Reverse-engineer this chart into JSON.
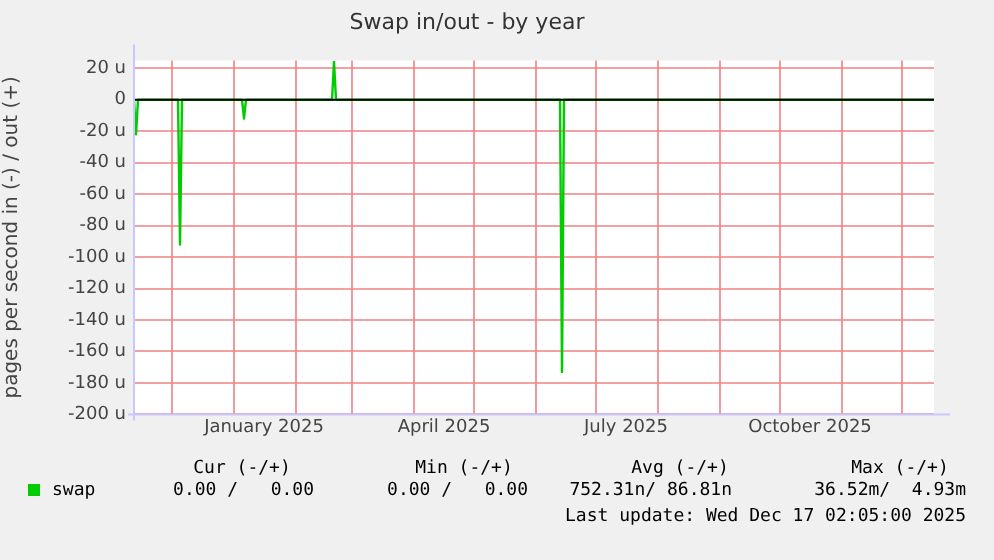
{
  "chart_data": {
    "type": "line",
    "title": "Swap in/out - by year",
    "ylabel": "pages per second in (-) / out (+)",
    "x": [
      "2024-11-12",
      "2024-11-13",
      "2024-11-14",
      "2024-12-04",
      "2024-12-05",
      "2024-12-06",
      "2025-01-05",
      "2025-01-06",
      "2025-01-07",
      "2025-02-19",
      "2025-02-20",
      "2025-02-21",
      "2025-06-13",
      "2025-06-14",
      "2025-06-15",
      "2025-12-17"
    ],
    "series": [
      {
        "name": "swap",
        "color": "#00cc00",
        "values": [
          0,
          -22,
          0,
          0,
          -92,
          0,
          0,
          -12,
          0,
          0,
          24,
          0,
          0,
          -173,
          0,
          0
        ]
      }
    ],
    "xlim": [
      "2024-11-12",
      "2025-12-17"
    ],
    "xticks": [
      {
        "value": "2024-12-01",
        "label": null
      },
      {
        "value": "2025-01-01",
        "label": null
      },
      {
        "value": "2025-01-16",
        "label": "January 2025"
      },
      {
        "value": "2025-02-01",
        "label": null
      },
      {
        "value": "2025-03-01",
        "label": null
      },
      {
        "value": "2025-04-01",
        "label": null
      },
      {
        "value": "2025-04-16",
        "label": "April 2025"
      },
      {
        "value": "2025-05-01",
        "label": null
      },
      {
        "value": "2025-06-01",
        "label": null
      },
      {
        "value": "2025-07-01",
        "label": null
      },
      {
        "value": "2025-07-16",
        "label": "July 2025"
      },
      {
        "value": "2025-08-01",
        "label": null
      },
      {
        "value": "2025-09-01",
        "label": null
      },
      {
        "value": "2025-10-01",
        "label": null
      },
      {
        "value": "2025-10-16",
        "label": "October 2025"
      },
      {
        "value": "2025-11-01",
        "label": null
      },
      {
        "value": "2025-12-01",
        "label": null
      }
    ],
    "ylim": [
      -200,
      25
    ],
    "yticks": [
      {
        "value": 20,
        "label": "20 u"
      },
      0,
      {
        "value": -20,
        "label": "-20 u"
      },
      {
        "value": -40,
        "label": "-40 u"
      },
      {
        "value": -60,
        "label": "-60 u"
      },
      {
        "value": -80,
        "label": "-80 u"
      },
      {
        "value": -100,
        "label": "-100 u"
      },
      {
        "value": -120,
        "label": "-120 u"
      },
      {
        "value": -140,
        "label": "-140 u"
      },
      {
        "value": -160,
        "label": "-160 u"
      },
      {
        "value": -180,
        "label": "-180 u"
      },
      {
        "value": -200,
        "label": "-200 u"
      }
    ],
    "ref_lines": [
      {
        "axis": "y",
        "value": 0,
        "color": "#000000"
      }
    ],
    "grid": true,
    "legend": "bottom left",
    "marker": "none",
    "line_style": "solid",
    "annotations": [
      "Cur (-/+)",
      "Min (-/+)",
      "Avg (-/+)",
      "Max (-/+)",
      "0.00 /   0.00",
      "0.00 /   0.00",
      "752.31n/ 86.81n",
      "36.52m/  4.93m",
      "Last update: Wed Dec 17 02:05:00 2025"
    ]
  }
}
